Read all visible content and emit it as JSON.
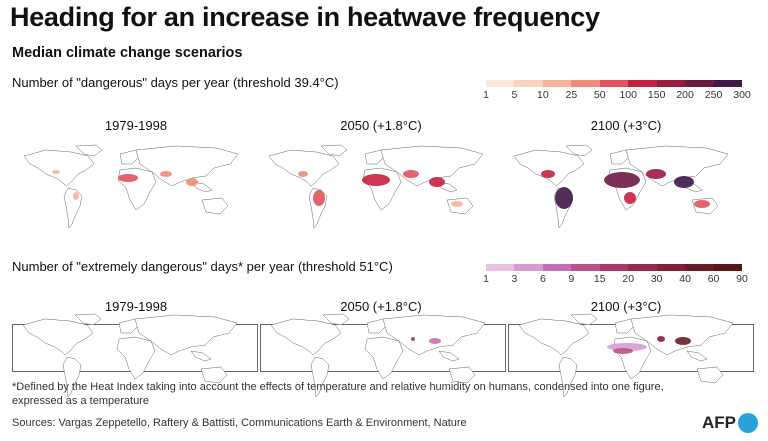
{
  "title": "Heading for an increase in heatwave frequency",
  "subtitle": "Median climate change scenarios",
  "section1": {
    "label": "Number of \"dangerous\" days per year (threshold 39.4°C)",
    "legend": {
      "ticks": [
        "1",
        "5",
        "10",
        "25",
        "50",
        "100",
        "150",
        "200",
        "250",
        "300"
      ],
      "colors": [
        "#fde7d6",
        "#fbd2bb",
        "#f6b49a",
        "#ef8b7a",
        "#e2525c",
        "#c62040",
        "#9a1a3f",
        "#6b1b42",
        "#3e1848"
      ]
    },
    "panels": [
      "1979-1998",
      "2050 (+1.8°C)",
      "2100 (+3°C)"
    ]
  },
  "section2": {
    "label": "Number of \"extremely dangerous\" days* per year (threshold 51°C)",
    "legend": {
      "ticks": [
        "1",
        "3",
        "6",
        "9",
        "15",
        "20",
        "30",
        "40",
        "60",
        "90"
      ],
      "colors": [
        "#e9c2e2",
        "#d79bd2",
        "#c76fb6",
        "#b8528d",
        "#a8396a",
        "#952b4b",
        "#7f2233",
        "#6a1c24",
        "#561614"
      ]
    },
    "panels": [
      "1979-1998",
      "2050 (+1.8°C)",
      "2100 (+3°C)"
    ]
  },
  "footnote": "*Defined by the Heat Index taking into account the effects of temperature and relative humidity on humans, condensed into one figure, expressed as a temperature",
  "source": "Sources: Vargas Zeppetello, Raftery & Battisti, Communications Earth & Environment, Nature",
  "logo": "AFP"
}
